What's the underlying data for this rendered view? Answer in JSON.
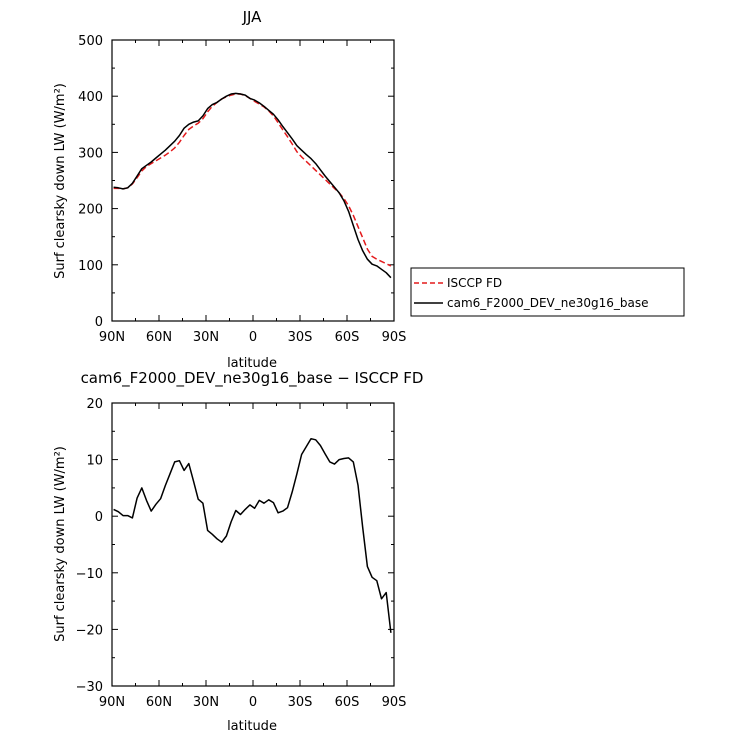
{
  "chart_data": [
    {
      "type": "line",
      "title": "JJA",
      "xlabel": "latitude",
      "ylabel": "Surf clearsky down LW (W/m²)",
      "xlim": [
        90,
        -90
      ],
      "ylim": [
        0,
        500
      ],
      "x_ticks": [
        90,
        60,
        30,
        0,
        -30,
        -60,
        -90
      ],
      "x_tick_labels": [
        "90N",
        "60N",
        "30N",
        "0",
        "30S",
        "60S",
        "90S"
      ],
      "y_ticks": [
        0,
        100,
        200,
        300,
        400,
        500
      ],
      "y_tick_labels": [
        "0",
        "100",
        "200",
        "300",
        "400",
        "500"
      ],
      "legend": {
        "placement": "right",
        "entries": [
          "ISCCP FD",
          "cam6_F2000_DEV_ne30g16_base"
        ]
      },
      "series": [
        {
          "name": "ISCCP FD",
          "color": "#e41a1c",
          "dash": "dashed",
          "x": [
            89,
            86,
            83,
            80,
            77,
            74,
            71,
            68,
            65,
            62,
            59,
            56,
            53,
            50,
            47,
            44,
            41,
            38,
            35,
            32,
            29,
            26,
            23,
            20,
            17,
            14,
            11,
            8,
            5,
            2,
            -1,
            -4,
            -7,
            -10,
            -13,
            -16,
            -19,
            -22,
            -25,
            -28,
            -31,
            -34,
            -37,
            -40,
            -43,
            -46,
            -49,
            -52,
            -55,
            -58,
            -61,
            -64,
            -67,
            -70,
            -73,
            -76,
            -79,
            -82,
            -85,
            -88
          ],
          "y": [
            236,
            236,
            235,
            237,
            244,
            255,
            267,
            275,
            280,
            285,
            290,
            295,
            301,
            308,
            318,
            330,
            341,
            347,
            352,
            360,
            372,
            382,
            389,
            395,
            399,
            402,
            404,
            404,
            401,
            396,
            391,
            386,
            381,
            374,
            365,
            353,
            340,
            328,
            315,
            301,
            292,
            284,
            276,
            268,
            260,
            252,
            244,
            236,
            228,
            218,
            205,
            188,
            168,
            148,
            128,
            115,
            110,
            106,
            102,
            98
          ]
        },
        {
          "name": "cam6_F2000_DEV_ne30g16_base",
          "color": "#000000",
          "dash": "solid",
          "x": [
            89,
            86,
            83,
            80,
            77,
            74,
            71,
            68,
            65,
            62,
            59,
            56,
            53,
            50,
            47,
            44,
            41,
            38,
            35,
            32,
            29,
            26,
            23,
            20,
            17,
            14,
            11,
            8,
            5,
            2,
            -1,
            -4,
            -7,
            -10,
            -13,
            -16,
            -19,
            -22,
            -25,
            -28,
            -31,
            -34,
            -37,
            -40,
            -43,
            -46,
            -49,
            -52,
            -55,
            -58,
            -61,
            -64,
            -67,
            -70,
            -73,
            -76,
            -79,
            -82,
            -85,
            -88
          ],
          "y": [
            238,
            237,
            235,
            237,
            245,
            258,
            271,
            277,
            283,
            290,
            297,
            304,
            312,
            320,
            330,
            343,
            350,
            354,
            356,
            365,
            378,
            385,
            389,
            395,
            400,
            404,
            405,
            404,
            402,
            396,
            393,
            388,
            382,
            375,
            368,
            358,
            346,
            335,
            324,
            312,
            304,
            296,
            289,
            280,
            269,
            258,
            248,
            238,
            228,
            214,
            195,
            170,
            145,
            125,
            110,
            101,
            98,
            92,
            86,
            77
          ]
        }
      ]
    },
    {
      "type": "line",
      "title": "cam6_F2000_DEV_ne30g16_base − ISCCP FD",
      "xlabel": "latitude",
      "ylabel": "Surf clearsky down LW (W/m²)",
      "xlim": [
        90,
        -90
      ],
      "ylim": [
        -30,
        20
      ],
      "x_ticks": [
        90,
        60,
        30,
        0,
        -30,
        -60,
        -90
      ],
      "x_tick_labels": [
        "90N",
        "60N",
        "30N",
        "0",
        "30S",
        "60S",
        "90S"
      ],
      "y_ticks": [
        -30,
        -20,
        -10,
        0,
        10,
        20
      ],
      "y_tick_labels": [
        "−30",
        "−20",
        "−10",
        "0",
        "10",
        "20"
      ],
      "series": [
        {
          "color": "#000000",
          "dash": "solid",
          "x": [
            89,
            86,
            83,
            80,
            77,
            74,
            71,
            68,
            65,
            62,
            59,
            56,
            53,
            50,
            47,
            44,
            41,
            38,
            35,
            32,
            29,
            26,
            23,
            20,
            17,
            14,
            11,
            8,
            5,
            2,
            -1,
            -4,
            -7,
            -10,
            -13,
            -16,
            -19,
            -22,
            -25,
            -28,
            -31,
            -34,
            -37,
            -40,
            -43,
            -46,
            -49,
            -52,
            -55,
            -58,
            -61,
            -64,
            -67,
            -70,
            -73,
            -76,
            -79,
            -82,
            -85,
            -88
          ],
          "y": [
            1.2,
            0.8,
            0.1,
            0.1,
            -0.3,
            3.2,
            5.0,
            2.8,
            0.9,
            2.1,
            3.1,
            5.4,
            7.5,
            9.6,
            9.8,
            8.1,
            9.3,
            6.2,
            3.0,
            2.3,
            -2.5,
            -3.2,
            -4.0,
            -4.6,
            -3.5,
            -1.0,
            1.0,
            0.3,
            1.2,
            2.0,
            1.4,
            2.8,
            2.3,
            2.9,
            2.4,
            0.6,
            0.9,
            1.5,
            4.3,
            7.5,
            10.9,
            12.3,
            13.7,
            13.5,
            12.5,
            11.0,
            9.6,
            9.2,
            10.0,
            10.2,
            10.3,
            9.6,
            5.5,
            -2.0,
            -8.9,
            -10.8,
            -11.4,
            -14.6,
            -13.5,
            -20.6
          ]
        }
      ]
    }
  ]
}
